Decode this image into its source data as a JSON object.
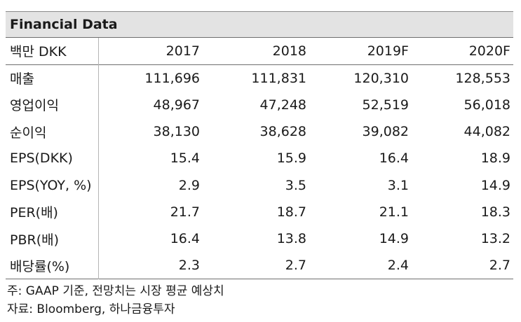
{
  "title": "Financial Data",
  "table": {
    "headers": [
      "백만 DKK",
      "2017",
      "2018",
      "2019F",
      "2020F"
    ],
    "rows": [
      [
        "매출",
        "111,696",
        "111,831",
        "120,310",
        "128,553"
      ],
      [
        "영업이익",
        "48,967",
        "47,248",
        "52,519",
        "56,018"
      ],
      [
        "순이익",
        "38,130",
        "38,628",
        "39,082",
        "44,082"
      ],
      [
        "EPS(DKK)",
        "15.4",
        "15.9",
        "16.4",
        "18.9"
      ],
      [
        "EPS(YOY, %)",
        "2.9",
        "3.5",
        "3.1",
        "14.9"
      ],
      [
        "PER(배)",
        "21.7",
        "18.7",
        "21.1",
        "18.3"
      ],
      [
        "PBR(배)",
        "16.4",
        "13.8",
        "14.9",
        "13.2"
      ],
      [
        "배당률(%)",
        "2.3",
        "2.7",
        "2.4",
        "2.7"
      ]
    ]
  },
  "notes": [
    "주: GAAP 기준, 전망치는 시장 평균 예상치",
    "자료: Bloomberg, 하나금융투자"
  ]
}
